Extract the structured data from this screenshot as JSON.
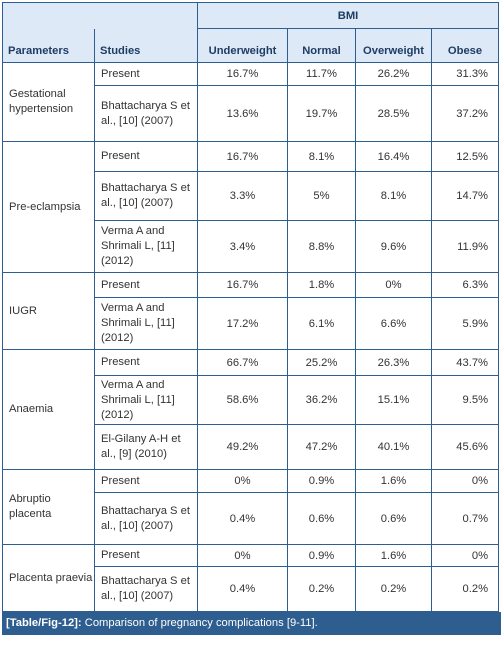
{
  "table": {
    "bmi_header": "BMI",
    "columns": [
      "Parameters",
      "Studies",
      "Underweight",
      "Normal",
      "Overweight",
      "Obese"
    ],
    "groups": [
      {
        "parameter": "Gestational hypertension",
        "rows": [
          {
            "study": "Present",
            "values": [
              "16.7%",
              "11.7%",
              "26.2%",
              "31.3%"
            ]
          },
          {
            "study": "Bhattacharya S et al., [10] (2007)",
            "values": [
              "13.6%",
              "19.7%",
              "28.5%",
              "37.2%"
            ]
          }
        ]
      },
      {
        "parameter": "Pre-eclampsia",
        "rows": [
          {
            "study": "Present",
            "values": [
              "16.7%",
              "8.1%",
              "16.4%",
              "12.5%"
            ]
          },
          {
            "study": "Bhattacharya S et al., [10] (2007)",
            "values": [
              "3.3%",
              "5%",
              "8.1%",
              "14.7%"
            ]
          },
          {
            "study": "Verma A and Shrimali L, [11] (2012)",
            "values": [
              "3.4%",
              "8.8%",
              "9.6%",
              "11.9%"
            ]
          }
        ]
      },
      {
        "parameter": "IUGR",
        "rows": [
          {
            "study": "Present",
            "values": [
              "16.7%",
              "1.8%",
              "0%",
              "6.3%"
            ]
          },
          {
            "study": "Verma A and Shrimali L, [11] (2012)",
            "values": [
              "17.2%",
              "6.1%",
              "6.6%",
              "5.9%"
            ]
          }
        ]
      },
      {
        "parameter": "Anaemia",
        "rows": [
          {
            "study": "Present",
            "values": [
              "66.7%",
              "25.2%",
              "26.3%",
              "43.7%"
            ]
          },
          {
            "study": "Verma A and Shrimali L, [11] (2012)",
            "values": [
              "58.6%",
              "36.2%",
              "15.1%",
              "9.5%"
            ]
          },
          {
            "study": "El-Gilany A-H et al., [9] (2010)",
            "values": [
              "49.2%",
              "47.2%",
              "40.1%",
              "45.6%"
            ]
          }
        ]
      },
      {
        "parameter": "Abruptio placenta",
        "rows": [
          {
            "study": "Present",
            "values": [
              "0%",
              "0.9%",
              "1.6%",
              "0%"
            ]
          },
          {
            "study": "Bhattacharya S et al., [10] (2007)",
            "values": [
              "0.4%",
              "0.6%",
              "0.6%",
              "0.7%"
            ]
          }
        ]
      },
      {
        "parameter": "Placenta praevia",
        "rows": [
          {
            "study": "Present",
            "values": [
              "0%",
              "0.9%",
              "1.6%",
              "0%"
            ]
          },
          {
            "study": "Bhattacharya S et al., [10] (2007)",
            "values": [
              "0.4%",
              "0.2%",
              "0.2%",
              "0.2%"
            ]
          }
        ]
      }
    ]
  },
  "caption": {
    "label": "[Table/Fig-12]:",
    "text": " Comparison of pregnancy complications [9-11]."
  },
  "colors": {
    "border": "#2e5d8f",
    "header_bg": "#dde9f6",
    "caption_bg": "#2e5d8f"
  }
}
